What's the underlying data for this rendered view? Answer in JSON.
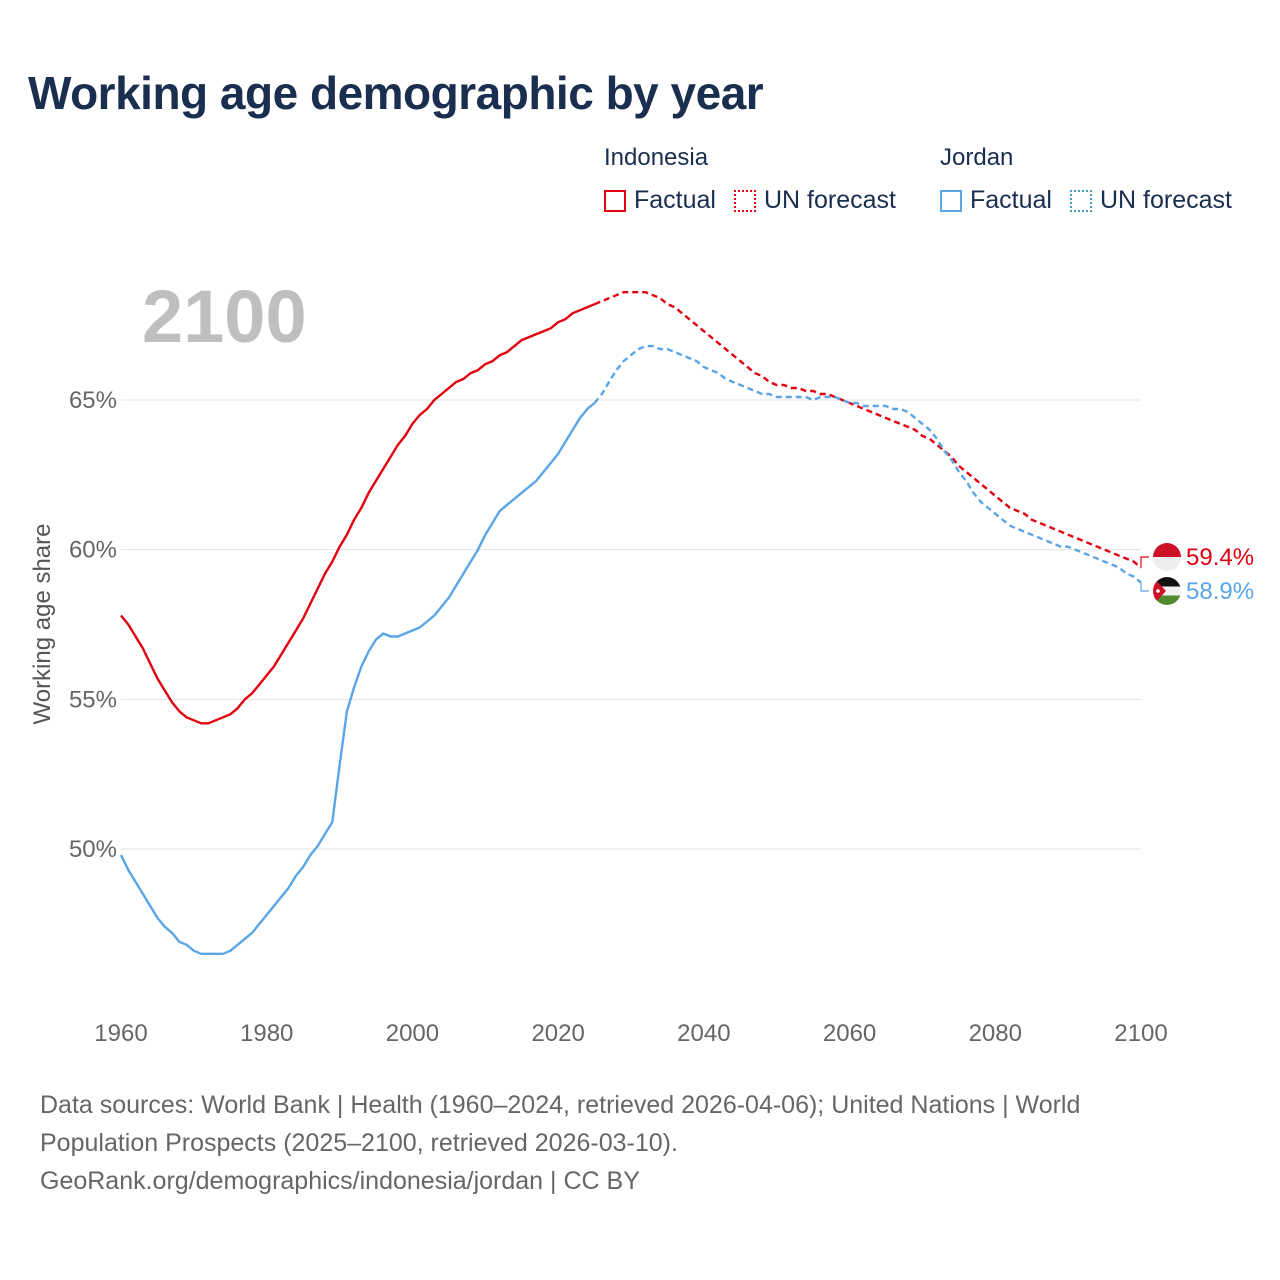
{
  "title": "Working age demographic by year",
  "year_label": "2100",
  "legend": {
    "groups": [
      {
        "country": "Indonesia",
        "factual": "Factual",
        "forecast": "UN forecast",
        "color": "#e3000f"
      },
      {
        "country": "Jordan",
        "factual": "Factual",
        "forecast": "UN forecast",
        "color": "#5aa5e6"
      }
    ]
  },
  "chart_data": {
    "type": "line",
    "title": "Working age demographic by year",
    "xlabel": "",
    "ylabel": "Working age share",
    "xlim": [
      1960,
      2100
    ],
    "ylim": [
      46.5,
      68.5
    ],
    "x_ticks": [
      "1960",
      "1980",
      "2000",
      "2020",
      "2040",
      "2060",
      "2080",
      "2100"
    ],
    "y_ticks": [
      {
        "value": 50,
        "label": "50%"
      },
      {
        "value": 55,
        "label": "55%"
      },
      {
        "value": 60,
        "label": "60%"
      },
      {
        "value": 65,
        "label": "65%"
      }
    ],
    "factual_end_year": 2025,
    "series": [
      {
        "name": "Indonesia",
        "color": "#e3000f",
        "end_label": "59.4%",
        "points": [
          [
            1960,
            57.8
          ],
          [
            1961,
            57.5
          ],
          [
            1962,
            57.1
          ],
          [
            1963,
            56.7
          ],
          [
            1964,
            56.2
          ],
          [
            1965,
            55.7
          ],
          [
            1966,
            55.3
          ],
          [
            1967,
            54.9
          ],
          [
            1968,
            54.6
          ],
          [
            1969,
            54.4
          ],
          [
            1970,
            54.3
          ],
          [
            1971,
            54.2
          ],
          [
            1972,
            54.2
          ],
          [
            1973,
            54.3
          ],
          [
            1974,
            54.4
          ],
          [
            1975,
            54.5
          ],
          [
            1976,
            54.7
          ],
          [
            1977,
            55.0
          ],
          [
            1978,
            55.2
          ],
          [
            1979,
            55.5
          ],
          [
            1980,
            55.8
          ],
          [
            1981,
            56.1
          ],
          [
            1982,
            56.5
          ],
          [
            1983,
            56.9
          ],
          [
            1984,
            57.3
          ],
          [
            1985,
            57.7
          ],
          [
            1986,
            58.2
          ],
          [
            1987,
            58.7
          ],
          [
            1988,
            59.2
          ],
          [
            1989,
            59.6
          ],
          [
            1990,
            60.1
          ],
          [
            1991,
            60.5
          ],
          [
            1992,
            61.0
          ],
          [
            1993,
            61.4
          ],
          [
            1994,
            61.9
          ],
          [
            1995,
            62.3
          ],
          [
            1996,
            62.7
          ],
          [
            1997,
            63.1
          ],
          [
            1998,
            63.5
          ],
          [
            1999,
            63.8
          ],
          [
            2000,
            64.2
          ],
          [
            2001,
            64.5
          ],
          [
            2002,
            64.7
          ],
          [
            2003,
            65.0
          ],
          [
            2004,
            65.2
          ],
          [
            2005,
            65.4
          ],
          [
            2006,
            65.6
          ],
          [
            2007,
            65.7
          ],
          [
            2008,
            65.9
          ],
          [
            2009,
            66.0
          ],
          [
            2010,
            66.2
          ],
          [
            2011,
            66.3
          ],
          [
            2012,
            66.5
          ],
          [
            2013,
            66.6
          ],
          [
            2014,
            66.8
          ],
          [
            2015,
            67.0
          ],
          [
            2016,
            67.1
          ],
          [
            2017,
            67.2
          ],
          [
            2018,
            67.3
          ],
          [
            2019,
            67.4
          ],
          [
            2020,
            67.6
          ],
          [
            2021,
            67.7
          ],
          [
            2022,
            67.9
          ],
          [
            2023,
            68.0
          ],
          [
            2024,
            68.1
          ],
          [
            2025,
            68.2
          ],
          [
            2026,
            68.3
          ],
          [
            2027,
            68.4
          ],
          [
            2028,
            68.5
          ],
          [
            2029,
            68.6
          ],
          [
            2030,
            68.6
          ],
          [
            2031,
            68.6
          ],
          [
            2032,
            68.6
          ],
          [
            2033,
            68.5
          ],
          [
            2034,
            68.4
          ],
          [
            2035,
            68.2
          ],
          [
            2036,
            68.1
          ],
          [
            2037,
            67.9
          ],
          [
            2038,
            67.7
          ],
          [
            2039,
            67.5
          ],
          [
            2040,
            67.3
          ],
          [
            2041,
            67.1
          ],
          [
            2042,
            66.9
          ],
          [
            2043,
            66.7
          ],
          [
            2044,
            66.5
          ],
          [
            2045,
            66.3
          ],
          [
            2046,
            66.1
          ],
          [
            2047,
            65.9
          ],
          [
            2048,
            65.8
          ],
          [
            2049,
            65.6
          ],
          [
            2050,
            65.5
          ],
          [
            2051,
            65.5
          ],
          [
            2052,
            65.4
          ],
          [
            2053,
            65.4
          ],
          [
            2054,
            65.3
          ],
          [
            2055,
            65.3
          ],
          [
            2056,
            65.2
          ],
          [
            2057,
            65.2
          ],
          [
            2058,
            65.1
          ],
          [
            2059,
            65.0
          ],
          [
            2060,
            64.9
          ],
          [
            2061,
            64.8
          ],
          [
            2062,
            64.7
          ],
          [
            2063,
            64.6
          ],
          [
            2064,
            64.5
          ],
          [
            2065,
            64.4
          ],
          [
            2066,
            64.3
          ],
          [
            2067,
            64.2
          ],
          [
            2068,
            64.1
          ],
          [
            2069,
            64.0
          ],
          [
            2070,
            63.8
          ],
          [
            2071,
            63.7
          ],
          [
            2072,
            63.5
          ],
          [
            2073,
            63.3
          ],
          [
            2074,
            63.1
          ],
          [
            2075,
            62.8
          ],
          [
            2076,
            62.6
          ],
          [
            2077,
            62.4
          ],
          [
            2078,
            62.2
          ],
          [
            2079,
            62.0
          ],
          [
            2080,
            61.8
          ],
          [
            2081,
            61.6
          ],
          [
            2082,
            61.4
          ],
          [
            2083,
            61.3
          ],
          [
            2084,
            61.2
          ],
          [
            2085,
            61.0
          ],
          [
            2086,
            60.9
          ],
          [
            2087,
            60.8
          ],
          [
            2088,
            60.7
          ],
          [
            2089,
            60.6
          ],
          [
            2090,
            60.5
          ],
          [
            2091,
            60.4
          ],
          [
            2092,
            60.3
          ],
          [
            2093,
            60.2
          ],
          [
            2094,
            60.1
          ],
          [
            2095,
            60.0
          ],
          [
            2096,
            59.9
          ],
          [
            2097,
            59.8
          ],
          [
            2098,
            59.7
          ],
          [
            2099,
            59.6
          ],
          [
            2100,
            59.4
          ]
        ]
      },
      {
        "name": "Jordan",
        "color": "#5aa5e6",
        "end_label": "58.9%",
        "points": [
          [
            1960,
            49.8
          ],
          [
            1961,
            49.3
          ],
          [
            1962,
            48.9
          ],
          [
            1963,
            48.5
          ],
          [
            1964,
            48.1
          ],
          [
            1965,
            47.7
          ],
          [
            1966,
            47.4
          ],
          [
            1967,
            47.2
          ],
          [
            1968,
            46.9
          ],
          [
            1969,
            46.8
          ],
          [
            1970,
            46.6
          ],
          [
            1971,
            46.5
          ],
          [
            1972,
            46.5
          ],
          [
            1973,
            46.5
          ],
          [
            1974,
            46.5
          ],
          [
            1975,
            46.6
          ],
          [
            1976,
            46.8
          ],
          [
            1977,
            47.0
          ],
          [
            1978,
            47.2
          ],
          [
            1979,
            47.5
          ],
          [
            1980,
            47.8
          ],
          [
            1981,
            48.1
          ],
          [
            1982,
            48.4
          ],
          [
            1983,
            48.7
          ],
          [
            1984,
            49.1
          ],
          [
            1985,
            49.4
          ],
          [
            1986,
            49.8
          ],
          [
            1987,
            50.1
          ],
          [
            1988,
            50.5
          ],
          [
            1989,
            50.9
          ],
          [
            1990,
            52.8
          ],
          [
            1991,
            54.6
          ],
          [
            1992,
            55.4
          ],
          [
            1993,
            56.1
          ],
          [
            1994,
            56.6
          ],
          [
            1995,
            57.0
          ],
          [
            1996,
            57.2
          ],
          [
            1997,
            57.1
          ],
          [
            1998,
            57.1
          ],
          [
            1999,
            57.2
          ],
          [
            2000,
            57.3
          ],
          [
            2001,
            57.4
          ],
          [
            2002,
            57.6
          ],
          [
            2003,
            57.8
          ],
          [
            2004,
            58.1
          ],
          [
            2005,
            58.4
          ],
          [
            2006,
            58.8
          ],
          [
            2007,
            59.2
          ],
          [
            2008,
            59.6
          ],
          [
            2009,
            60.0
          ],
          [
            2010,
            60.5
          ],
          [
            2011,
            60.9
          ],
          [
            2012,
            61.3
          ],
          [
            2013,
            61.5
          ],
          [
            2014,
            61.7
          ],
          [
            2015,
            61.9
          ],
          [
            2016,
            62.1
          ],
          [
            2017,
            62.3
          ],
          [
            2018,
            62.6
          ],
          [
            2019,
            62.9
          ],
          [
            2020,
            63.2
          ],
          [
            2021,
            63.6
          ],
          [
            2022,
            64.0
          ],
          [
            2023,
            64.4
          ],
          [
            2024,
            64.7
          ],
          [
            2025,
            64.9
          ],
          [
            2026,
            65.2
          ],
          [
            2027,
            65.6
          ],
          [
            2028,
            66.0
          ],
          [
            2029,
            66.3
          ],
          [
            2030,
            66.5
          ],
          [
            2031,
            66.7
          ],
          [
            2032,
            66.8
          ],
          [
            2033,
            66.8
          ],
          [
            2034,
            66.7
          ],
          [
            2035,
            66.7
          ],
          [
            2036,
            66.6
          ],
          [
            2037,
            66.5
          ],
          [
            2038,
            66.4
          ],
          [
            2039,
            66.3
          ],
          [
            2040,
            66.1
          ],
          [
            2041,
            66.0
          ],
          [
            2042,
            65.9
          ],
          [
            2043,
            65.7
          ],
          [
            2044,
            65.6
          ],
          [
            2045,
            65.5
          ],
          [
            2046,
            65.4
          ],
          [
            2047,
            65.3
          ],
          [
            2048,
            65.2
          ],
          [
            2049,
            65.2
          ],
          [
            2050,
            65.1
          ],
          [
            2051,
            65.1
          ],
          [
            2052,
            65.1
          ],
          [
            2053,
            65.1
          ],
          [
            2054,
            65.1
          ],
          [
            2055,
            65.0
          ],
          [
            2056,
            65.1
          ],
          [
            2057,
            65.1
          ],
          [
            2058,
            65.1
          ],
          [
            2059,
            65.0
          ],
          [
            2060,
            64.9
          ],
          [
            2061,
            64.9
          ],
          [
            2062,
            64.8
          ],
          [
            2063,
            64.8
          ],
          [
            2064,
            64.8
          ],
          [
            2065,
            64.8
          ],
          [
            2066,
            64.7
          ],
          [
            2067,
            64.7
          ],
          [
            2068,
            64.6
          ],
          [
            2069,
            64.4
          ],
          [
            2070,
            64.2
          ],
          [
            2071,
            64.0
          ],
          [
            2072,
            63.7
          ],
          [
            2073,
            63.3
          ],
          [
            2074,
            63.0
          ],
          [
            2075,
            62.6
          ],
          [
            2076,
            62.3
          ],
          [
            2077,
            61.9
          ],
          [
            2078,
            61.6
          ],
          [
            2079,
            61.4
          ],
          [
            2080,
            61.2
          ],
          [
            2081,
            61.0
          ],
          [
            2082,
            60.8
          ],
          [
            2083,
            60.7
          ],
          [
            2084,
            60.6
          ],
          [
            2085,
            60.5
          ],
          [
            2086,
            60.4
          ],
          [
            2087,
            60.3
          ],
          [
            2088,
            60.2
          ],
          [
            2089,
            60.1
          ],
          [
            2090,
            60.1
          ],
          [
            2091,
            60.0
          ],
          [
            2092,
            59.9
          ],
          [
            2093,
            59.8
          ],
          [
            2094,
            59.7
          ],
          [
            2095,
            59.6
          ],
          [
            2096,
            59.5
          ],
          [
            2097,
            59.4
          ],
          [
            2098,
            59.2
          ],
          [
            2099,
            59.1
          ],
          [
            2100,
            58.9
          ]
        ]
      }
    ]
  },
  "footer": {
    "line1": "Data sources: World Bank | Health (1960–2024, retrieved 2026-04-06); United Nations | World",
    "line2": "Population Prospects (2025–2100, retrieved 2026-03-10).",
    "line3": "GeoRank.org/demographics/indonesia/jordan | CC BY"
  }
}
